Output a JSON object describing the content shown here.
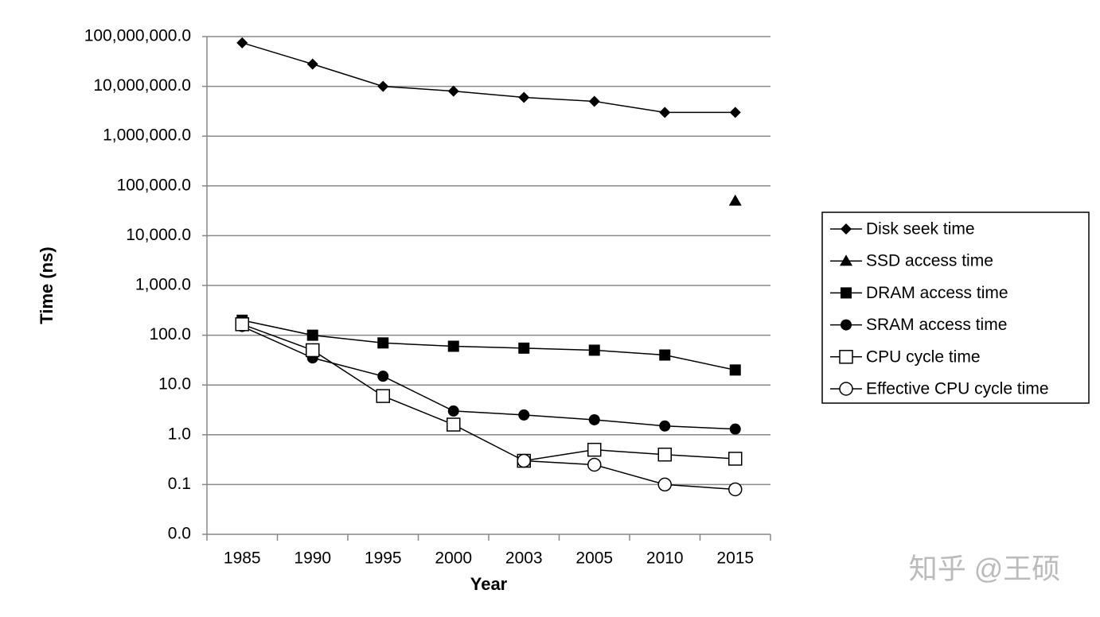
{
  "chart_data": {
    "type": "line",
    "x_label": "Year",
    "y_label": "Time (ns)",
    "categories": [
      "1985",
      "1990",
      "1995",
      "2000",
      "2003",
      "2005",
      "2010",
      "2015"
    ],
    "log_scale": true,
    "grid": true,
    "legend": "right",
    "ylim": [
      0.01,
      100000000
    ],
    "yticks": [
      {
        "value": 0.01,
        "label": "0.0"
      },
      {
        "value": 0.1,
        "label": "0.1"
      },
      {
        "value": 1,
        "label": "1.0"
      },
      {
        "value": 10,
        "label": "10.0"
      },
      {
        "value": 100,
        "label": "100.0"
      },
      {
        "value": 1000,
        "label": "1,000.0"
      },
      {
        "value": 10000,
        "label": "10,000.0"
      },
      {
        "value": 100000,
        "label": "100,000.0"
      },
      {
        "value": 1000000,
        "label": "1,000,000.0"
      },
      {
        "value": 10000000,
        "label": "10,000,000.0"
      },
      {
        "value": 100000000,
        "label": "100,000,000.0"
      }
    ],
    "series": [
      {
        "name": "Disk seek time",
        "color": "#000000",
        "marker": "diamond",
        "values": [
          75000000,
          28000000,
          10000000,
          8000000,
          6000000,
          5000000,
          3000000,
          3000000
        ]
      },
      {
        "name": "SSD access time",
        "color": "#000000",
        "marker": "triangle",
        "values": [
          null,
          null,
          null,
          null,
          null,
          null,
          null,
          50000
        ]
      },
      {
        "name": "DRAM access time",
        "color": "#000000",
        "marker": "square",
        "values": [
          200,
          100,
          70,
          60,
          55,
          50,
          40,
          20
        ]
      },
      {
        "name": "SRAM access time",
        "color": "#000000",
        "marker": "circle",
        "values": [
          150,
          35,
          15,
          3,
          2.5,
          2,
          1.5,
          1.3
        ]
      },
      {
        "name": "CPU cycle time",
        "color": "#000000",
        "marker": "open-square",
        "values": [
          166,
          50,
          6,
          1.6,
          0.3,
          0.5,
          0.4,
          0.33
        ]
      },
      {
        "name": "Effective CPU cycle time",
        "color": "#000000",
        "marker": "open-circle",
        "values": [
          null,
          null,
          null,
          null,
          0.3,
          0.25,
          0.1,
          0.08
        ]
      }
    ]
  },
  "watermark": "知乎 @王硕"
}
